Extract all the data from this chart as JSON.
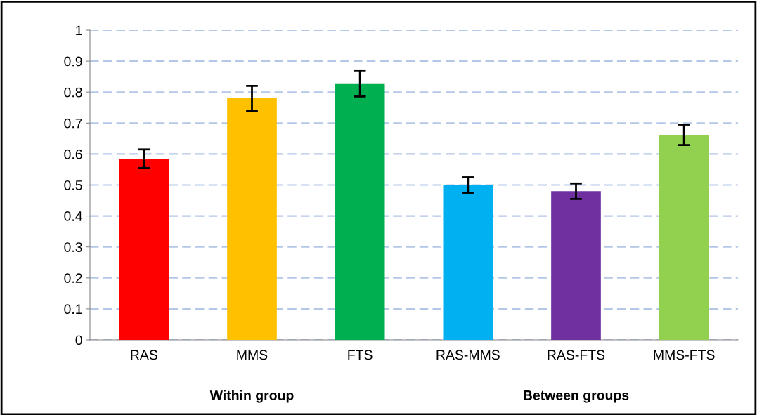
{
  "chart_data": {
    "type": "bar",
    "categories": [
      "RAS",
      "MMS",
      "FTS",
      "RAS-MMS",
      "RAS-FTS",
      "MMS-FTS"
    ],
    "values": [
      0.585,
      0.78,
      0.828,
      0.5,
      0.48,
      0.662
    ],
    "errors": [
      0.03,
      0.04,
      0.042,
      0.025,
      0.025,
      0.033
    ],
    "colors": [
      "#ff0000",
      "#ffc000",
      "#00b050",
      "#00b0f0",
      "#7030a0",
      "#92d050"
    ],
    "ylim": [
      0,
      1
    ],
    "yticks": [
      0,
      0.1,
      0.2,
      0.3,
      0.4,
      0.5,
      0.6,
      0.7,
      0.8,
      0.9,
      1
    ],
    "grid": "y",
    "annotations": [
      "Within group",
      "Between groups"
    ]
  }
}
